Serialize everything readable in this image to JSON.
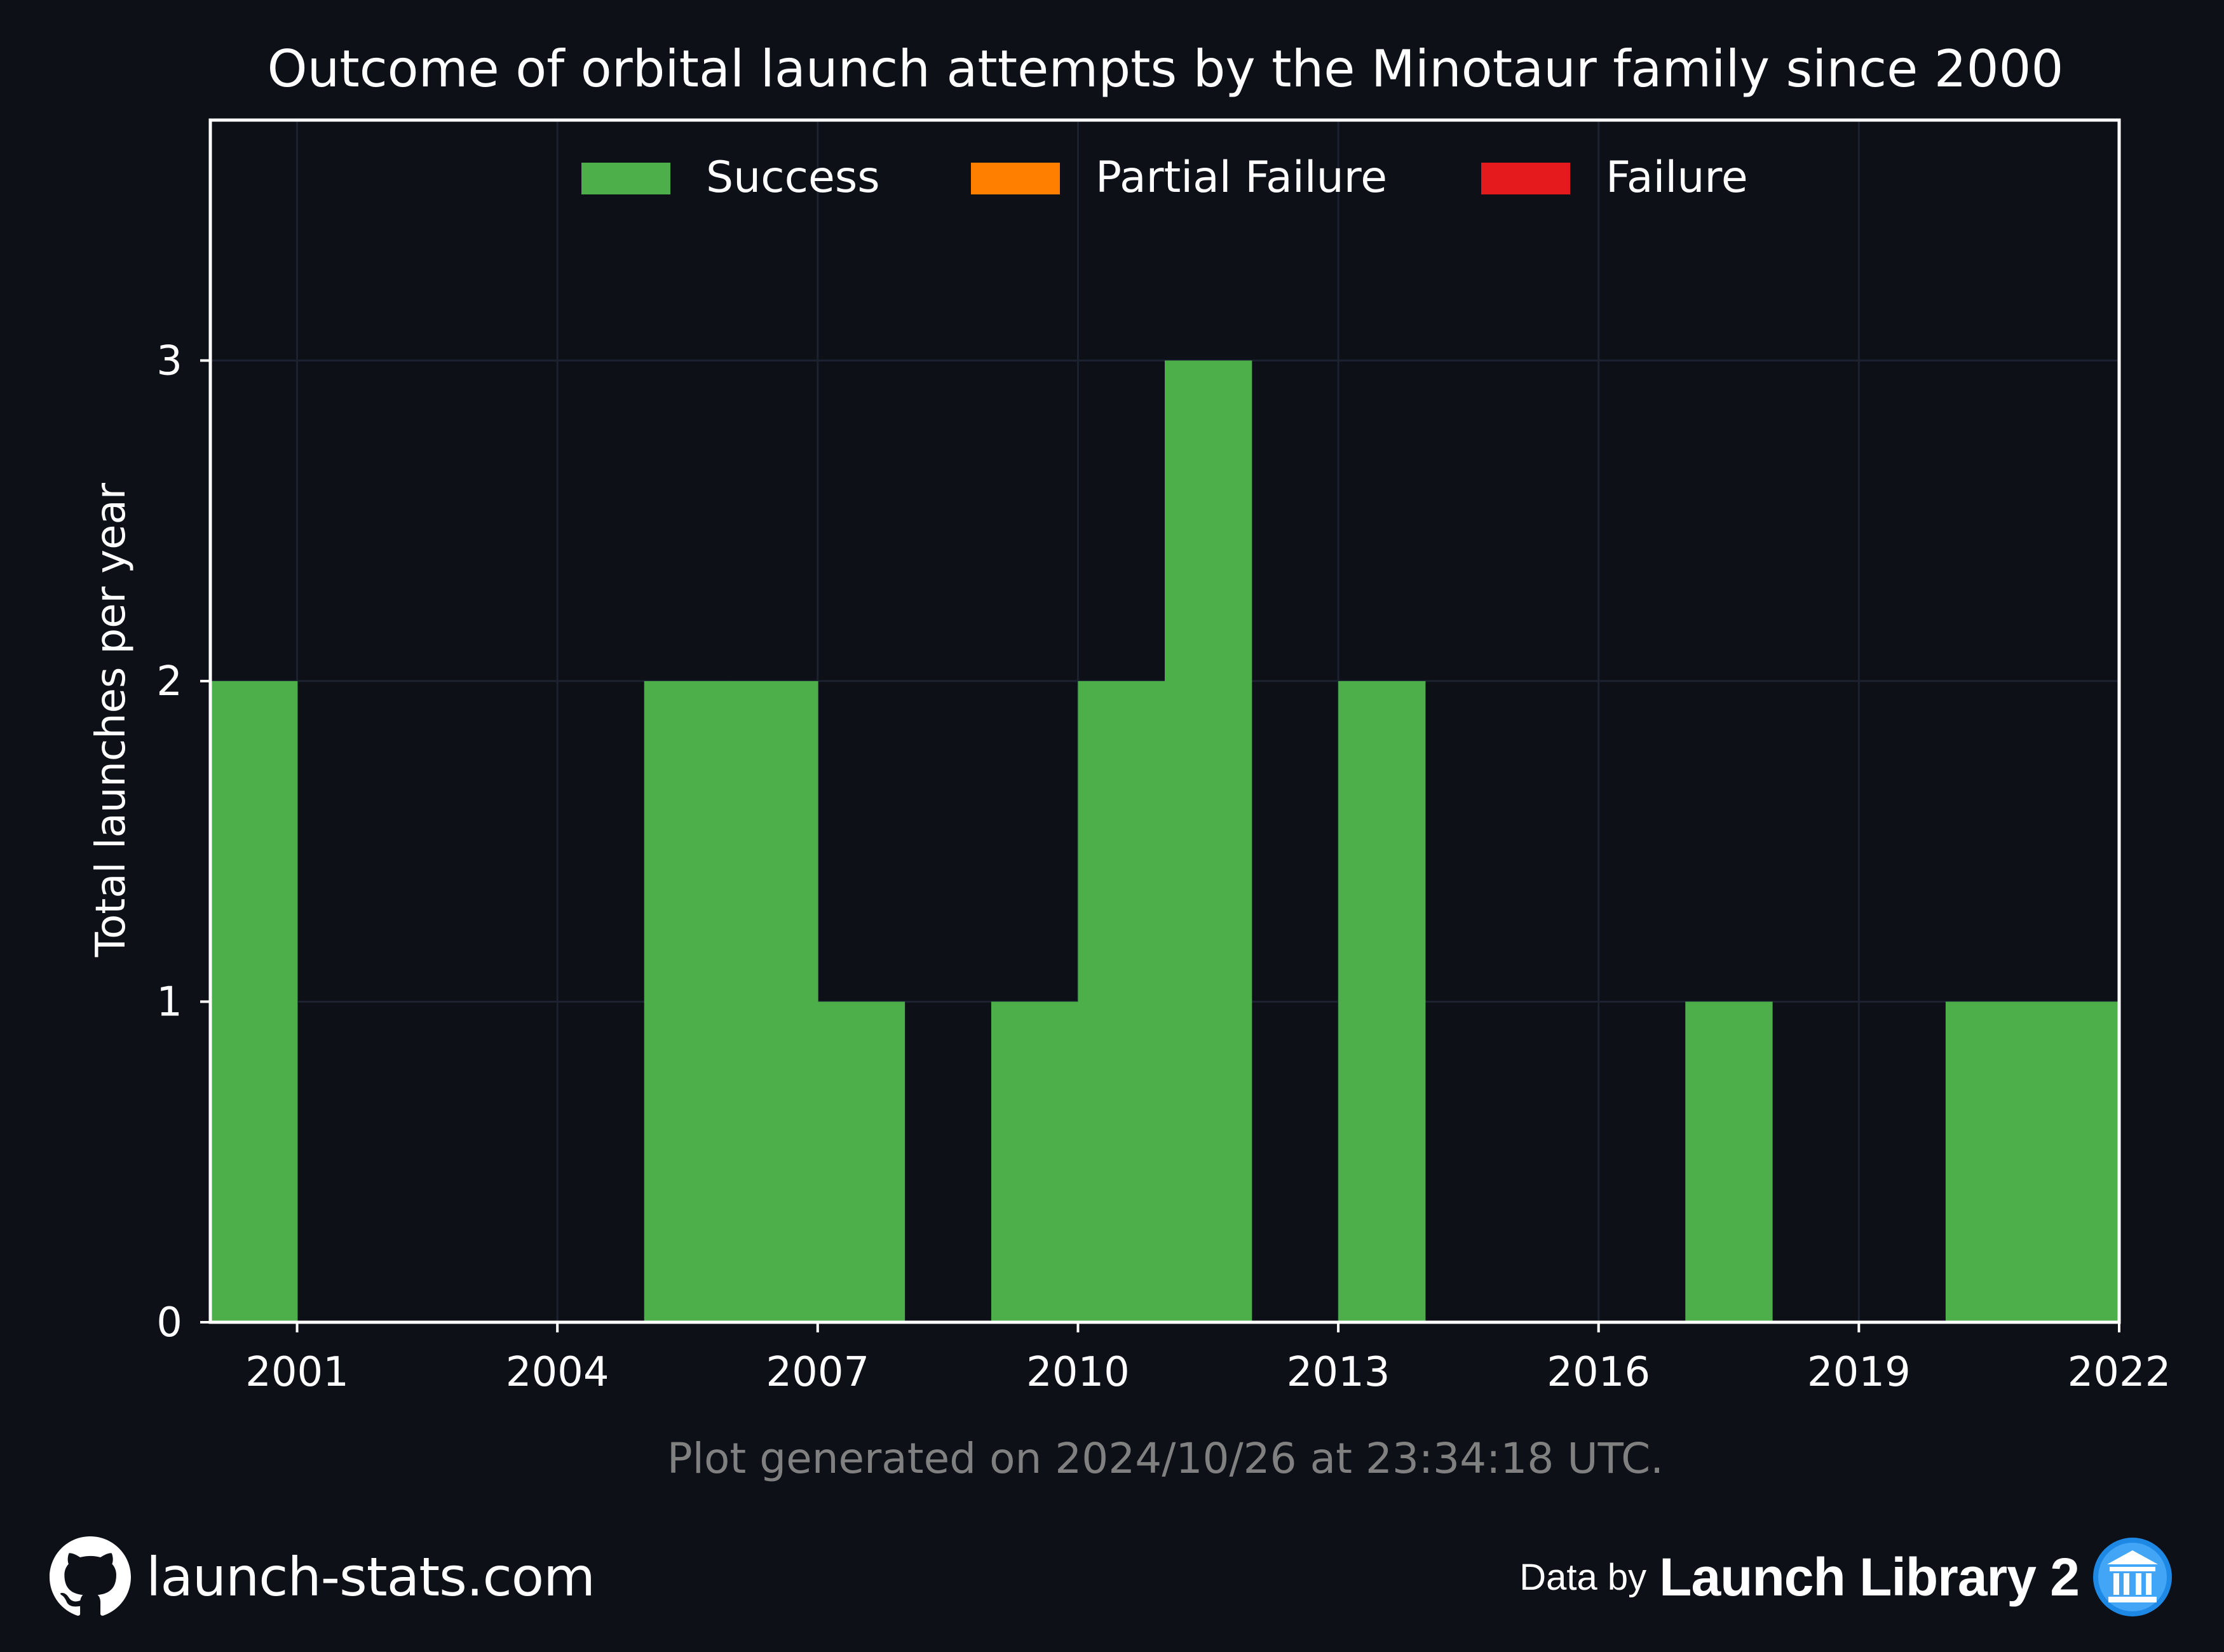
{
  "chart_data": {
    "type": "bar",
    "title": "Outcome of orbital launch attempts by the Minotaur family since 2000",
    "ylabel": "Total launches per year",
    "xlabel": "",
    "xlim": [
      2000,
      2022
    ],
    "ylim": [
      0,
      3.75
    ],
    "x_ticks": [
      "2001",
      "2004",
      "2007",
      "2010",
      "2013",
      "2016",
      "2019",
      "2022"
    ],
    "y_ticks": [
      "0",
      "1",
      "2",
      "3"
    ],
    "grid": true,
    "stacked": true,
    "legend_position": "top-center",
    "categories": [
      "2000",
      "2001",
      "2002",
      "2003",
      "2004",
      "2005",
      "2006",
      "2007",
      "2008",
      "2009",
      "2010",
      "2011",
      "2012",
      "2013",
      "2014",
      "2015",
      "2016",
      "2017",
      "2018",
      "2019",
      "2020",
      "2021"
    ],
    "series": [
      {
        "name": "Success",
        "color": "#4daf4a",
        "values": [
          2,
          0,
          0,
          0,
          0,
          2,
          2,
          1,
          0,
          1,
          2,
          3,
          0,
          2,
          0,
          0,
          0,
          1,
          0,
          0,
          1,
          1
        ]
      },
      {
        "name": "Partial Failure",
        "color": "#ff7f00",
        "values": [
          0,
          0,
          0,
          0,
          0,
          0,
          0,
          0,
          0,
          0,
          0,
          0,
          0,
          0,
          0,
          0,
          0,
          0,
          0,
          0,
          0,
          0
        ]
      },
      {
        "name": "Failure",
        "color": "#e41a1c",
        "values": [
          0,
          0,
          0,
          0,
          0,
          0,
          0,
          0,
          0,
          0,
          0,
          0,
          0,
          0,
          0,
          0,
          0,
          0,
          0,
          0,
          0,
          0
        ]
      }
    ]
  },
  "caption": "Plot generated on 2024/10/26 at 23:34:18 UTC.",
  "footer": {
    "site": "launch-stats.com",
    "data_by": "Data by",
    "source": "Launch Library 2",
    "github_icon": "github-icon",
    "source_icon": "launch-library-icon"
  },
  "colors": {
    "background": "#0d1017",
    "axes": "#ffffff",
    "grid": "#1c2230",
    "caption": "#808080"
  }
}
